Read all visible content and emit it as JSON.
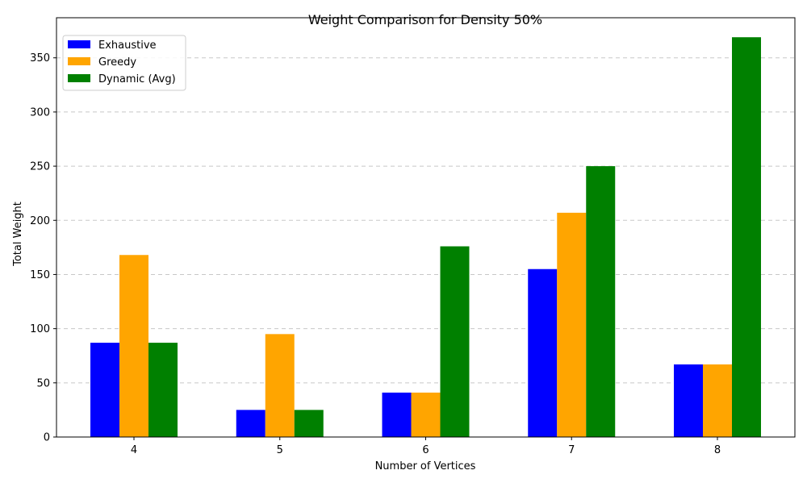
{
  "chart_data": {
    "type": "bar",
    "title": "Weight Comparison for Density 50%",
    "xlabel": "Number of Vertices",
    "ylabel": "Total Weight",
    "categories": [
      "4",
      "5",
      "6",
      "7",
      "8"
    ],
    "series": [
      {
        "name": "Exhaustive",
        "color": "#0000ff",
        "values": [
          87,
          25,
          41,
          155,
          67
        ]
      },
      {
        "name": "Greedy",
        "color": "#ffa500",
        "values": [
          168,
          95,
          41,
          207,
          67
        ]
      },
      {
        "name": "Dynamic (Avg)",
        "color": "#008000",
        "values": [
          87,
          25,
          176,
          250,
          369
        ]
      }
    ],
    "yticks": [
      "0",
      "50",
      "100",
      "150",
      "200",
      "250",
      "300",
      "350"
    ],
    "ylim": [
      0,
      387
    ],
    "grid": "y-dashed",
    "legend_position": "top-left"
  }
}
